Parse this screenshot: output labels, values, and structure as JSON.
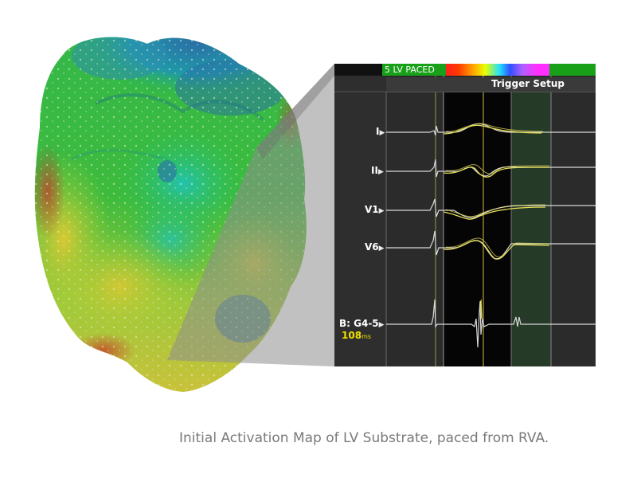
{
  "figure": {
    "caption": "Initial Activation Map of LV Substrate, paced from RVA."
  },
  "egm_panel": {
    "status_label": "5 LV PACED",
    "trigger_label": "Trigger Setup",
    "leads": [
      "I",
      "II",
      "V1",
      "V6",
      "B: G4-5"
    ],
    "measurement_value": "108",
    "measurement_unit": "ms"
  },
  "colors": {
    "map_red": "#d23a22",
    "map_yellow": "#d9c832",
    "map_green": "#2fbf3a",
    "map_teal": "#1fb5a2",
    "map_blue": "#2a6fa8",
    "trace_yellow": "#e8e05a",
    "status_green": "#19a019",
    "measure_yellow": "#f0e000"
  }
}
